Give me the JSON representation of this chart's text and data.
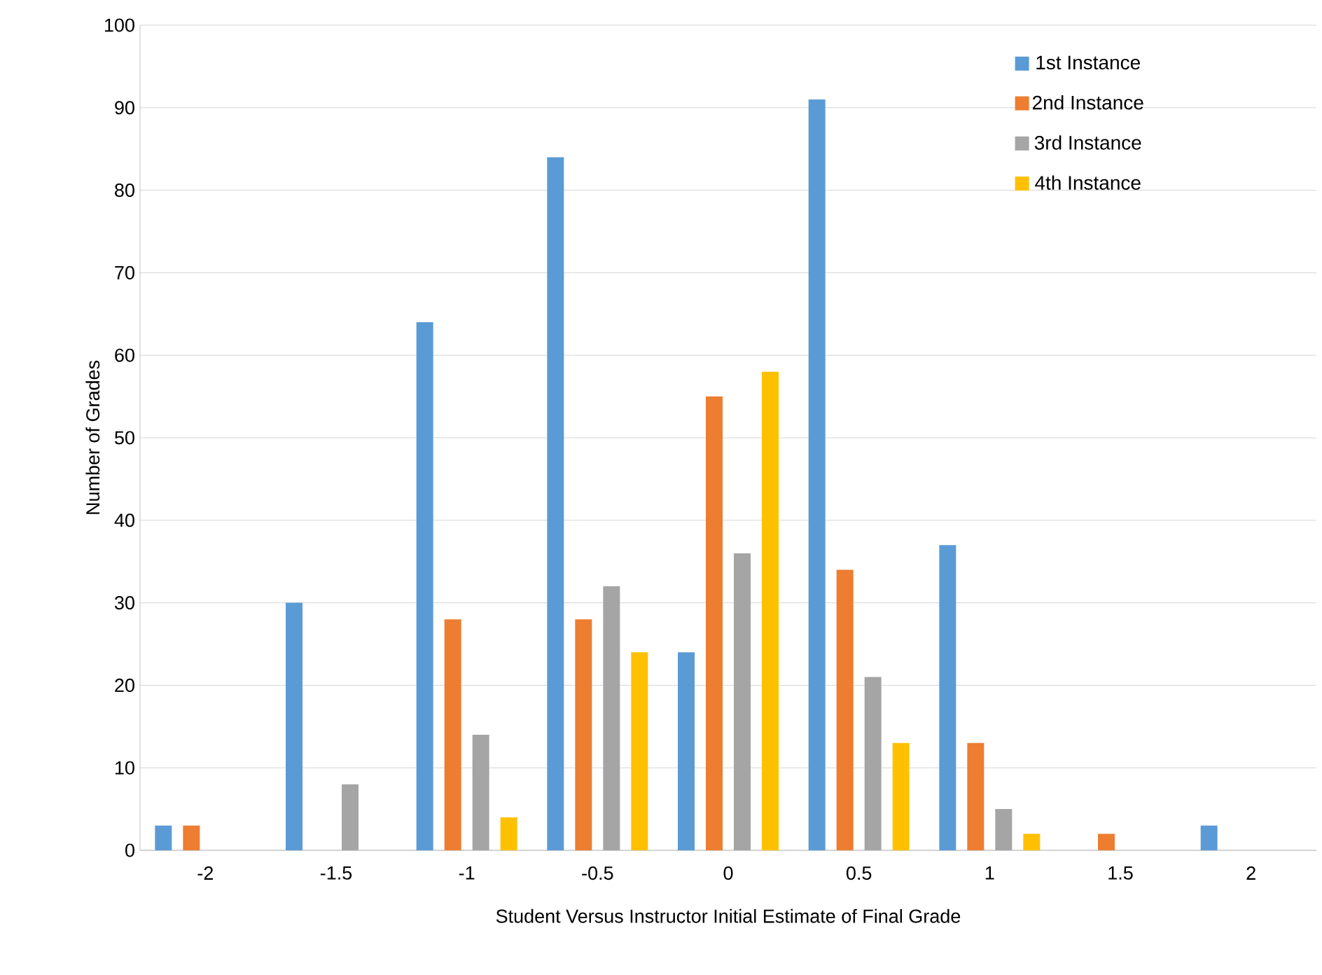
{
  "chart_data": {
    "type": "bar",
    "xlabel": "Student Versus Instructor Initial Estimate of Final Grade",
    "ylabel": "Number of Grades",
    "categories": [
      "-2",
      "-1.5",
      "-1",
      "-0.5",
      "0",
      "0.5",
      "1",
      "1.5",
      "2"
    ],
    "series": [
      {
        "name": "1st Instance",
        "color": "#5b9bd5",
        "values": [
          3,
          30,
          64,
          84,
          24,
          91,
          37,
          0,
          3
        ]
      },
      {
        "name": "2nd Instance",
        "color": "#ed7d31",
        "values": [
          3,
          0,
          28,
          28,
          55,
          34,
          13,
          2,
          0
        ]
      },
      {
        "name": "3rd Instance",
        "color": "#a5a5a5",
        "values": [
          0,
          8,
          14,
          32,
          36,
          21,
          5,
          0,
          0
        ]
      },
      {
        "name": "4th Instance",
        "color": "#ffc000",
        "values": [
          0,
          0,
          4,
          24,
          58,
          13,
          2,
          0,
          0
        ]
      }
    ],
    "ylim": [
      0,
      100
    ],
    "yticks": [
      0,
      10,
      20,
      30,
      40,
      50,
      60,
      70,
      80,
      90,
      100
    ],
    "grid": "y",
    "legend": "top right"
  }
}
